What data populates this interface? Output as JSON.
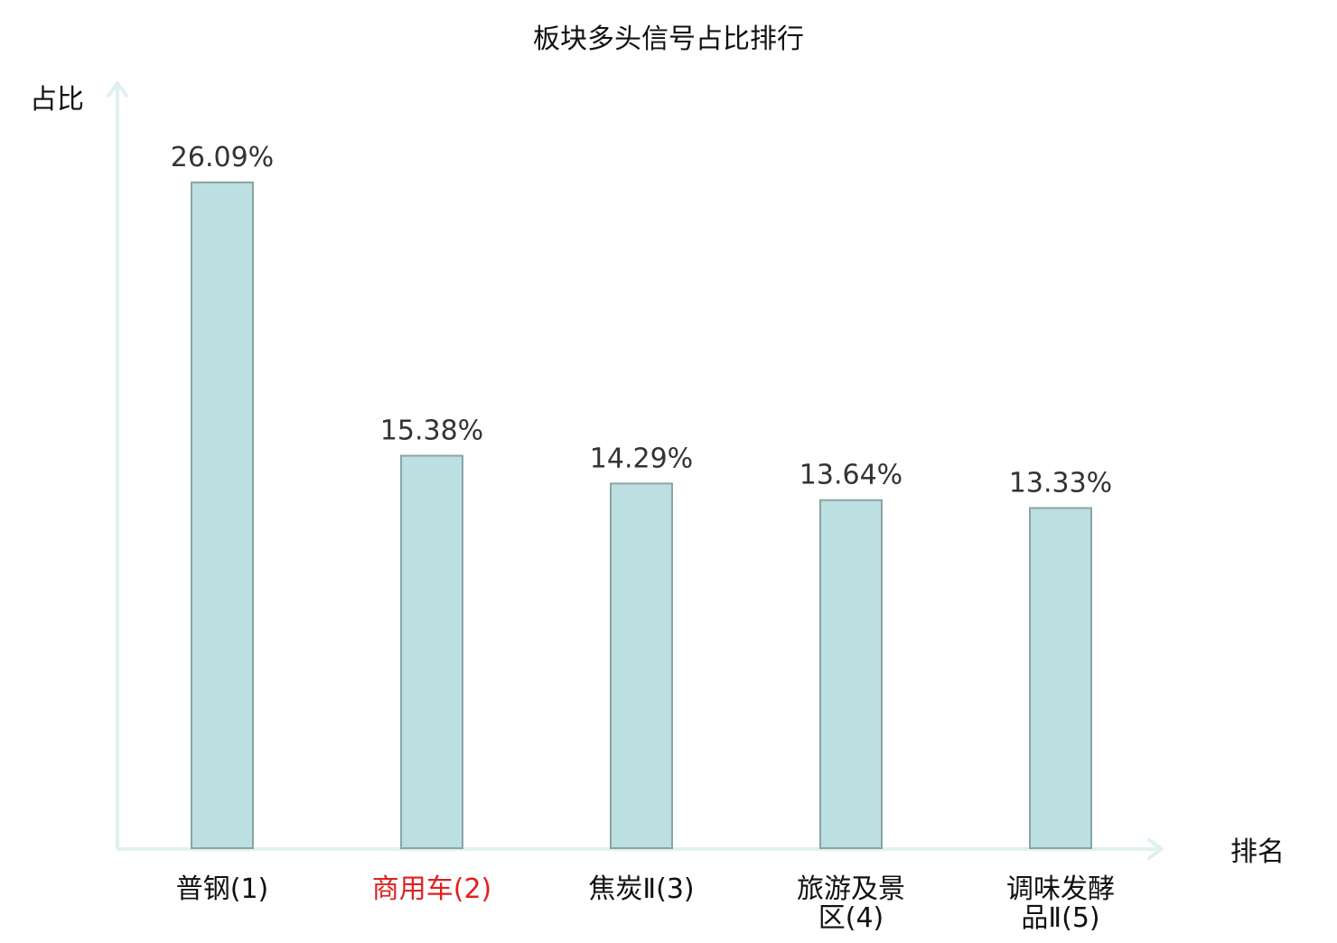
{
  "chart_data": {
    "type": "bar",
    "title": "板块多头信号占比排行",
    "xlabel": "排名",
    "ylabel": "占比",
    "categories": [
      [
        "普钢(1)"
      ],
      [
        "商用车(2)"
      ],
      [
        "焦炭Ⅱ(3)"
      ],
      [
        "旅游及景",
        "区(4)"
      ],
      [
        "调味发酵",
        "品Ⅱ(5)"
      ]
    ],
    "highlight_index": 1,
    "values": [
      26.09,
      15.38,
      14.29,
      13.64,
      13.33
    ],
    "value_labels": [
      "26.09%",
      "15.38%",
      "14.29%",
      "13.64%",
      "13.33%"
    ],
    "ylim": [
      0,
      26.09
    ],
    "grid": false,
    "colors": {
      "bar_fill": "#bce0e1",
      "bar_stroke": "#8aa4a5",
      "axis": "#dff1ef",
      "label": "#333333",
      "highlight": "#e02020",
      "title": "#111111"
    }
  }
}
